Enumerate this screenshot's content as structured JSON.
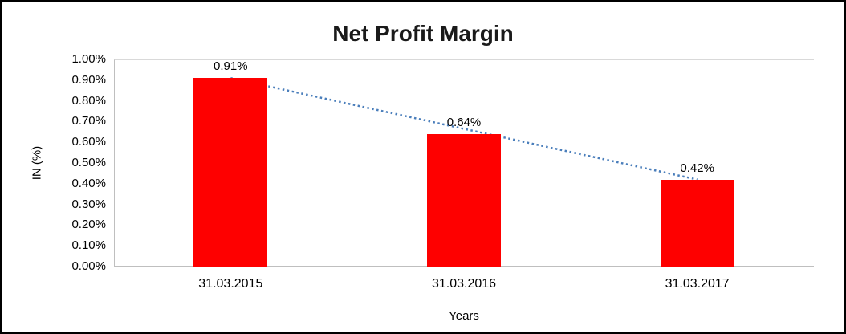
{
  "chart_data": {
    "type": "bar",
    "title": "Net Profit Margin",
    "categories": [
      "31.03.2015",
      "31.03.2016",
      "31.03.2017"
    ],
    "values": [
      0.91,
      0.64,
      0.42
    ],
    "value_labels": [
      "0.91%",
      "0.64%",
      "0.42%"
    ],
    "xlabel": "Years",
    "ylabel": "IN (%)",
    "ylim": [
      0,
      1.0
    ],
    "yticks": [
      "0.00%",
      "0.10%",
      "0.20%",
      "0.30%",
      "0.40%",
      "0.50%",
      "0.60%",
      "0.70%",
      "0.80%",
      "0.90%",
      "1.00%"
    ],
    "bar_color": "#fe0000",
    "trendline": {
      "style": "dotted",
      "color": "#4a7ebb"
    },
    "legend": "none",
    "grid": "horizontal line at 1.00% only"
  }
}
